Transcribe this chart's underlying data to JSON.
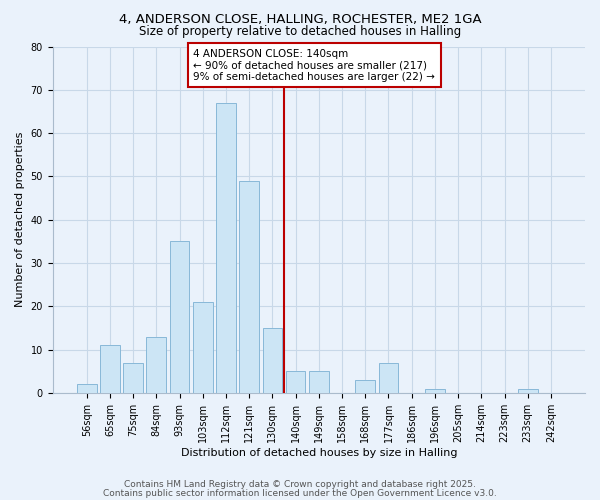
{
  "title": "4, ANDERSON CLOSE, HALLING, ROCHESTER, ME2 1GA",
  "subtitle": "Size of property relative to detached houses in Halling",
  "xlabel": "Distribution of detached houses by size in Halling",
  "ylabel": "Number of detached properties",
  "bar_labels": [
    "56sqm",
    "65sqm",
    "75sqm",
    "84sqm",
    "93sqm",
    "103sqm",
    "112sqm",
    "121sqm",
    "130sqm",
    "140sqm",
    "149sqm",
    "158sqm",
    "168sqm",
    "177sqm",
    "186sqm",
    "196sqm",
    "205sqm",
    "214sqm",
    "223sqm",
    "233sqm",
    "242sqm"
  ],
  "bar_values": [
    2,
    11,
    7,
    13,
    35,
    21,
    67,
    49,
    15,
    5,
    5,
    0,
    3,
    7,
    0,
    1,
    0,
    0,
    0,
    1,
    0
  ],
  "bar_color": "#cce5f5",
  "bar_edgecolor": "#88b8d8",
  "vline_x": 9.0,
  "vline_color": "#bb0000",
  "annotation_text": "4 ANDERSON CLOSE: 140sqm\n← 90% of detached houses are smaller (217)\n9% of semi-detached houses are larger (22) →",
  "annotation_box_facecolor": "#ffffff",
  "annotation_box_edgecolor": "#bb0000",
  "ylim": [
    0,
    80
  ],
  "yticks": [
    0,
    10,
    20,
    30,
    40,
    50,
    60,
    70,
    80
  ],
  "grid_color": "#c8d8e8",
  "background_color": "#eaf2fb",
  "footer1": "Contains HM Land Registry data © Crown copyright and database right 2025.",
  "footer2": "Contains public sector information licensed under the Open Government Licence v3.0.",
  "title_fontsize": 9.5,
  "subtitle_fontsize": 8.5,
  "xlabel_fontsize": 8,
  "ylabel_fontsize": 8,
  "tick_fontsize": 7,
  "annot_fontsize": 7.5,
  "footer_fontsize": 6.5
}
